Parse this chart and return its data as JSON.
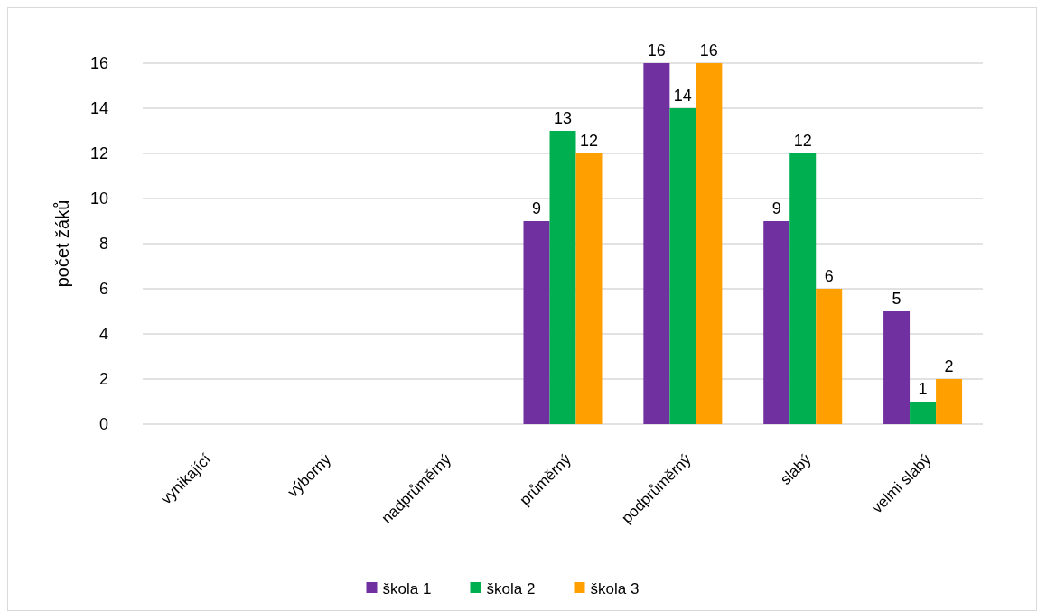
{
  "chart_data": {
    "type": "bar",
    "ylabel": "počet žáků",
    "categories": [
      "vynikající",
      "výborný",
      "nadprůměrný",
      "průměrný",
      "podprůměrný",
      "slabý",
      "velmi slabý"
    ],
    "series": [
      {
        "name": "škola 1",
        "color": "#7030a0",
        "values": [
          null,
          null,
          null,
          9,
          16,
          9,
          5
        ]
      },
      {
        "name": "škola 2",
        "color": "#00b050",
        "values": [
          null,
          null,
          null,
          13,
          14,
          12,
          1
        ]
      },
      {
        "name": "škola 3",
        "color": "#ffa000",
        "values": [
          null,
          null,
          null,
          12,
          16,
          6,
          2
        ]
      }
    ],
    "ylim": [
      0,
      16
    ],
    "yticks": [
      0,
      2,
      4,
      6,
      8,
      10,
      12,
      14,
      16
    ],
    "grid": "y",
    "legend": "bottom",
    "data_labels": true
  }
}
